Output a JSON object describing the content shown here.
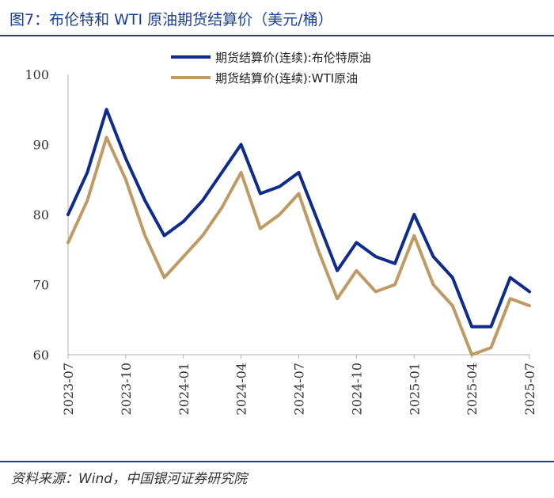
{
  "figure": {
    "title": "图7：布伦特和 WTI 原油期货结算价（美元/桶）",
    "source": "资料来源：Wind，中国银河证券研究院"
  },
  "colors": {
    "title": "#1a3f8f",
    "brent": "#0f2b8c",
    "wti": "#bf9a64",
    "axis": "#b0b0b0",
    "rule": "#1a3f8f"
  },
  "chart_data": {
    "type": "line",
    "title": "",
    "xlabel": "",
    "ylabel": "",
    "ylim": [
      60,
      100
    ],
    "yticks": [
      "60",
      "70",
      "80",
      "90",
      "100"
    ],
    "xticks": [
      "2023-07",
      "2023-10",
      "2024-01",
      "2024-04",
      "2024-07",
      "2024-10",
      "2025-01",
      "2025-04",
      "2025-07"
    ],
    "legend_position": "top-right",
    "x": [
      "2023-07",
      "2023-08",
      "2023-09",
      "2023-10",
      "2023-11",
      "2023-12",
      "2024-01",
      "2024-02",
      "2024-03",
      "2024-04",
      "2024-05",
      "2024-06",
      "2024-07",
      "2024-08",
      "2024-09",
      "2024-10",
      "2024-11",
      "2024-12",
      "2025-01",
      "2025-02",
      "2025-03",
      "2025-04",
      "2025-05",
      "2025-06",
      "2025-07"
    ],
    "series": [
      {
        "name": "期货结算价(连续):布伦特原油",
        "color": "#0f2b8c",
        "values": [
          80,
          86,
          95,
          88,
          82,
          77,
          79,
          82,
          86,
          90,
          83,
          84,
          86,
          79,
          72,
          76,
          74,
          73,
          80,
          74,
          71,
          64,
          64,
          71,
          69
        ]
      },
      {
        "name": "期货结算价(连续):WTI原油",
        "color": "#bf9a64",
        "values": [
          76,
          82,
          91,
          85,
          77,
          71,
          74,
          77,
          81,
          86,
          78,
          80,
          83,
          75,
          68,
          72,
          69,
          70,
          77,
          70,
          67,
          60,
          61,
          68,
          67
        ]
      }
    ]
  }
}
